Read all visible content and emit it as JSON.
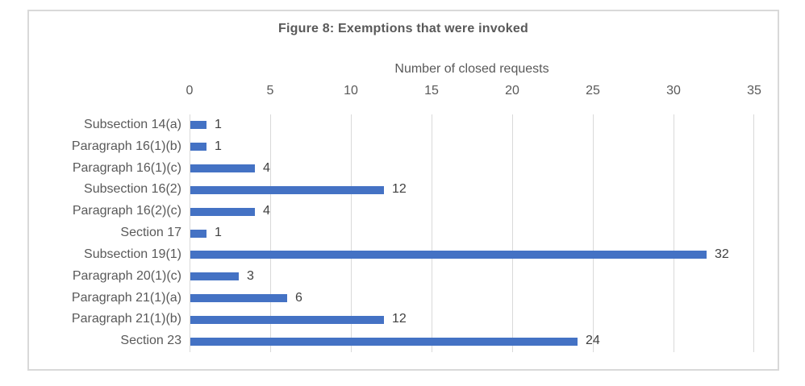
{
  "chart_data": {
    "type": "bar",
    "orientation": "horizontal",
    "title": "Figure 8: Exemptions that were invoked",
    "xlabel": "Number of closed requests",
    "ylabel": "",
    "categories": [
      "Subsection 14(a)",
      "Paragraph 16(1)(b)",
      "Paragraph 16(1)(c)",
      "Subsection 16(2)",
      "Paragraph 16(2)(c)",
      "Section 17",
      "Subsection 19(1)",
      "Paragraph 20(1)(c)",
      "Paragraph 21(1)(a)",
      "Paragraph 21(1)(b)",
      "Section 23"
    ],
    "values": [
      1,
      1,
      4,
      12,
      4,
      1,
      32,
      3,
      6,
      12,
      24
    ],
    "data_labels": [
      1,
      1,
      4,
      12,
      4,
      1,
      32,
      3,
      6,
      12,
      24
    ],
    "xlim": [
      0,
      35
    ],
    "xticks": [
      0,
      5,
      10,
      15,
      20,
      25,
      30,
      35
    ],
    "grid": true,
    "legend": false,
    "colors": {
      "bar": "#4472c4",
      "gridline": "#d9d9d9",
      "axis_line": "#d9d9d9",
      "frame_border": "#d9d9d9",
      "title_text": "#595959",
      "axis_text": "#595959",
      "data_label_text": "#404040"
    }
  }
}
